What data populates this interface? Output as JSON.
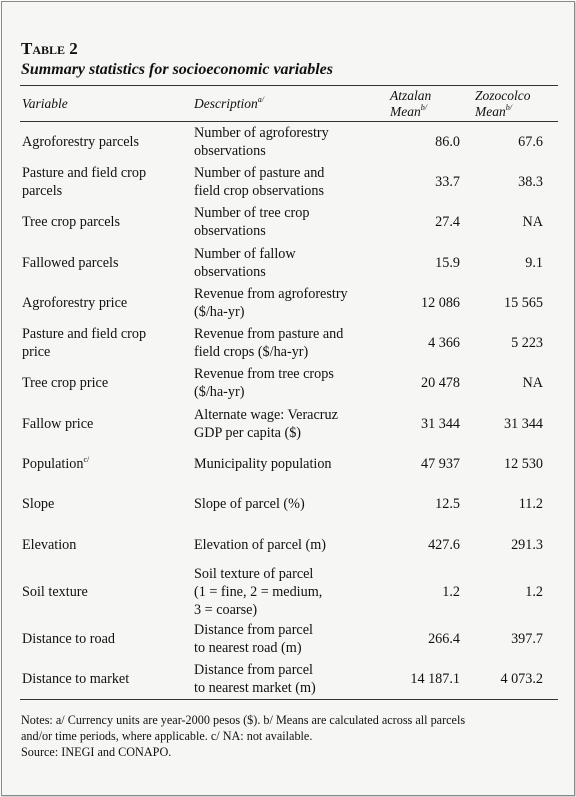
{
  "title": {
    "label": "Table 2",
    "subtitle": "Summary statistics for socioeconomic variables"
  },
  "table": {
    "columns": [
      {
        "lines": [
          "Variable"
        ]
      },
      {
        "lines": [
          "Description"
        ],
        "sup": "a/"
      },
      {
        "lines": [
          "Atzalan",
          "Mean"
        ],
        "sup": "b/"
      },
      {
        "lines": [
          "Zozocolco",
          "Mean"
        ],
        "sup": "b/"
      }
    ],
    "rows": [
      {
        "variable": [
          "Agroforestry parcels"
        ],
        "description": [
          "Number of agroforestry",
          "observations"
        ],
        "atzalan": "86.0",
        "zozocolco": "67.6"
      },
      {
        "variable": [
          "Pasture and field crop",
          "parcels"
        ],
        "description": [
          "Number of pasture and",
          "field crop observations"
        ],
        "atzalan": "33.7",
        "zozocolco": "38.3"
      },
      {
        "variable": [
          "Tree crop parcels"
        ],
        "description": [
          "Number of tree crop",
          "observations"
        ],
        "atzalan": "27.4",
        "zozocolco": "NA"
      },
      {
        "variable": [
          "Fallowed parcels"
        ],
        "description": [
          "Number of fallow",
          "observations"
        ],
        "atzalan": "15.9",
        "zozocolco": "9.1"
      },
      {
        "variable": [
          "Agroforestry price"
        ],
        "description": [
          "Revenue from agroforestry",
          "($/ha-yr)"
        ],
        "atzalan": "12 086",
        "zozocolco": "15 565"
      },
      {
        "variable": [
          "Pasture and field crop",
          "price"
        ],
        "description": [
          "Revenue from pasture and",
          "field crops ($/ha-yr)"
        ],
        "atzalan": "4 366",
        "zozocolco": "5 223"
      },
      {
        "variable": [
          "Tree crop price"
        ],
        "description": [
          "Revenue from tree crops",
          "($/ha-yr)"
        ],
        "atzalan": "20 478",
        "zozocolco": "NA"
      },
      {
        "variable": [
          "Fallow price"
        ],
        "description": [
          "Alternate wage: Veracruz",
          "GDP per capita ($)"
        ],
        "atzalan": "31 344",
        "zozocolco": "31 344"
      },
      {
        "variable": [
          "Population"
        ],
        "variable_sup": "c/",
        "description": [
          "Municipality population"
        ],
        "atzalan": "47 937",
        "zozocolco": "12 530"
      },
      {
        "variable": [
          "Slope"
        ],
        "description": [
          "Slope of parcel (%)"
        ],
        "atzalan": "12.5",
        "zozocolco": "11.2"
      },
      {
        "variable": [
          "Elevation"
        ],
        "description": [
          "Elevation of parcel (m)"
        ],
        "atzalan": "427.6",
        "zozocolco": "291.3"
      },
      {
        "variable": [
          "Soil texture"
        ],
        "description": [
          "Soil texture of parcel",
          "(1 = fine, 2 = medium,",
          "3 = coarse)"
        ],
        "atzalan": "1.2",
        "zozocolco": "1.2"
      },
      {
        "variable": [
          "Distance to road"
        ],
        "description": [
          "Distance from parcel",
          "to nearest road (m)"
        ],
        "atzalan": "266.4",
        "zozocolco": "397.7"
      },
      {
        "variable": [
          "Distance to market"
        ],
        "description": [
          "Distance from parcel",
          "to nearest market (m)"
        ],
        "atzalan": "14 187.1",
        "zozocolco": "4 073.2"
      }
    ]
  },
  "notes": [
    "Notes: a/ Currency units are year-2000 pesos ($). b/ Means are calculated across all parcels",
    "and/or time periods, where applicable. c/ NA: not available.",
    "Source: INEGI and CONAPO."
  ]
}
